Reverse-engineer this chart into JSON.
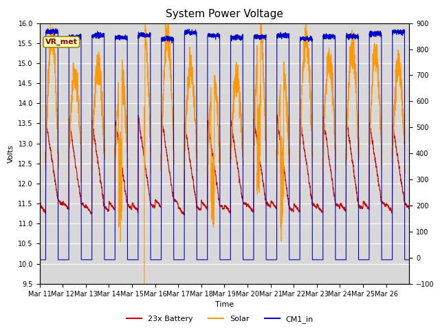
{
  "title": "System Power Voltage",
  "xlabel": "Time",
  "ylabel_left": "Volts",
  "ylim_left": [
    9.5,
    16.0
  ],
  "ylim_right": [
    -100,
    900
  ],
  "yticks_left": [
    9.5,
    10.0,
    10.5,
    11.0,
    11.5,
    12.0,
    12.5,
    13.0,
    13.5,
    14.0,
    14.5,
    15.0,
    15.5,
    16.0
  ],
  "yticks_right": [
    -100,
    0,
    100,
    200,
    300,
    400,
    500,
    600,
    700,
    800,
    900
  ],
  "background_color": "#ffffff",
  "plot_bg_color": "#d8d8d8",
  "grid_color": "#ffffff",
  "line_colors": {
    "battery": "#cc0000",
    "solar": "#ff9900",
    "cm1": "#0000cc"
  },
  "legend_labels": [
    "23x Battery",
    "Solar",
    "CM1_in"
  ],
  "annotation_text": "VR_met",
  "annotation_color": "#8b0000",
  "annotation_bg": "#ffffc0",
  "n_days": 16,
  "x_tick_labels": [
    "Mar 11",
    "Mar 12",
    "Mar 13",
    "Mar 14",
    "Mar 15",
    "Mar 16",
    "Mar 17",
    "Mar 18",
    "Mar 19",
    "Mar 20",
    "Mar 21",
    "Mar 22",
    "Mar 23",
    "Mar 24",
    "Mar 25",
    "Mar 26"
  ],
  "title_fontsize": 11,
  "axis_label_fontsize": 8,
  "tick_fontsize": 7
}
